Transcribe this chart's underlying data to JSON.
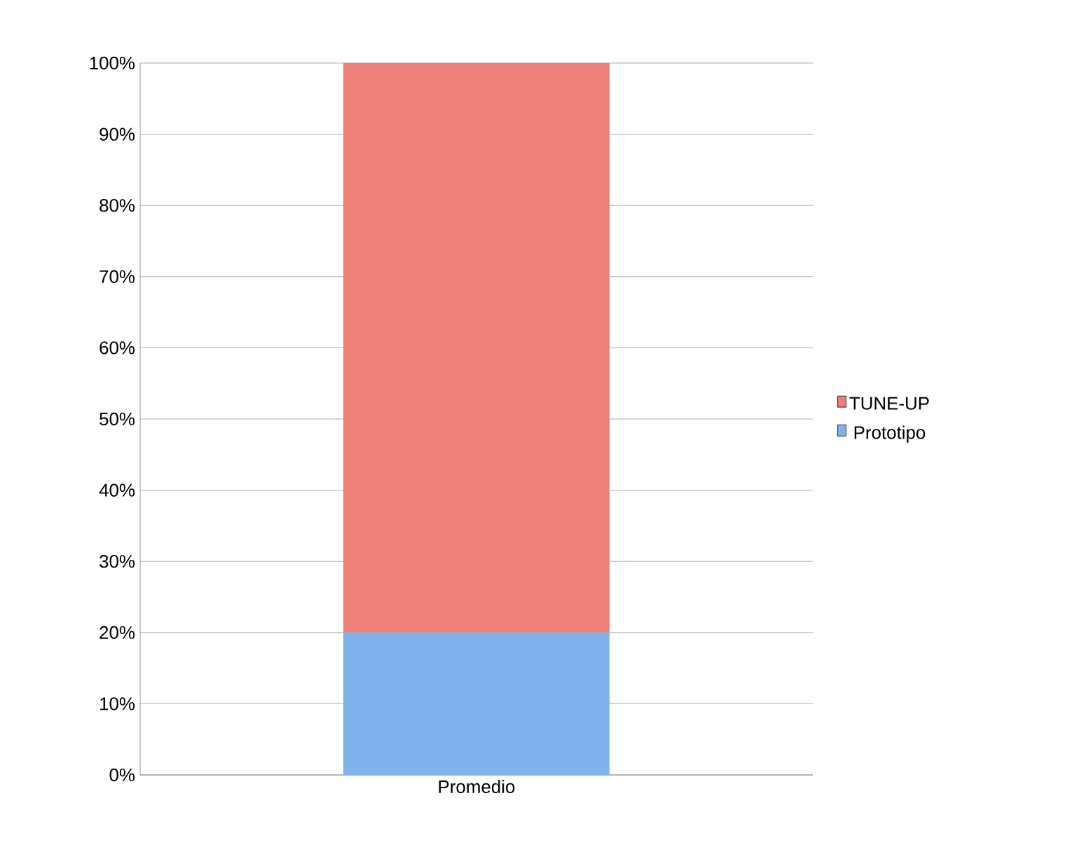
{
  "chart_data": {
    "type": "bar",
    "stacked": true,
    "categories": [
      "Promedio"
    ],
    "series": [
      {
        "name": "Prototipo",
        "color": "#80b2ec",
        "values": [
          20
        ]
      },
      {
        "name": "TUNE-UP",
        "color": "#ec8078",
        "values": [
          80
        ]
      }
    ],
    "ylim": [
      0,
      100
    ],
    "yticks": [
      {
        "value": 0,
        "label": "0%"
      },
      {
        "value": 10,
        "label": "10%"
      },
      {
        "value": 20,
        "label": "20%"
      },
      {
        "value": 30,
        "label": "30%"
      },
      {
        "value": 40,
        "label": "40%"
      },
      {
        "value": 50,
        "label": "50%"
      },
      {
        "value": 60,
        "label": "60%"
      },
      {
        "value": 70,
        "label": "70%"
      },
      {
        "value": 80,
        "label": "80%"
      },
      {
        "value": 90,
        "label": "90%"
      },
      {
        "value": 100,
        "label": "100%"
      }
    ],
    "grid": "y",
    "legend": "right"
  }
}
